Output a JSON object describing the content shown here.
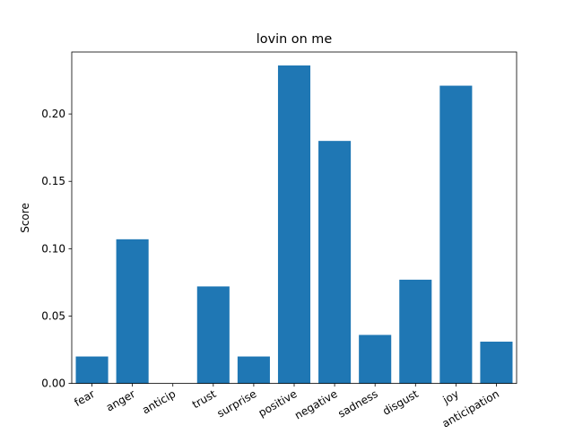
{
  "chart_data": {
    "type": "bar",
    "title": "lovin on me",
    "xlabel": "",
    "ylabel": "Score",
    "categories": [
      "fear",
      "anger",
      "anticip",
      "trust",
      "surprise",
      "positive",
      "negative",
      "sadness",
      "disgust",
      "joy",
      "anticipation"
    ],
    "values": [
      0.02,
      0.107,
      0.0,
      0.072,
      0.02,
      0.236,
      0.18,
      0.036,
      0.077,
      0.221,
      0.031
    ],
    "ylim": [
      0,
      0.246
    ],
    "yticks": [
      0.0,
      0.05,
      0.1,
      0.15,
      0.2
    ],
    "ytick_labels": [
      "0.00",
      "0.05",
      "0.10",
      "0.15",
      "0.20"
    ],
    "grid": false,
    "legend": "none",
    "colors": {
      "bar": "#1f77b4",
      "axis": "#000000",
      "background": "#ffffff"
    }
  }
}
